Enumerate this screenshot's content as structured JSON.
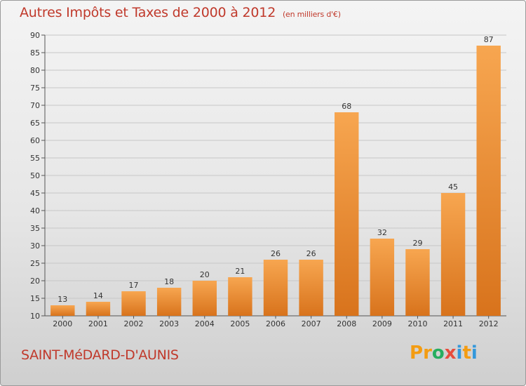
{
  "header": {
    "title": "Autres Impôts et Taxes de 2000 à 2012",
    "subtitle": "(en milliers d'€)"
  },
  "footer": {
    "city": "SAINT-MéDARD-D'AUNIS",
    "logo": {
      "text": "Proxiti",
      "letters": [
        {
          "char": "P",
          "color": "#f39c12"
        },
        {
          "char": "r",
          "color": "#f39c12"
        },
        {
          "char": "o",
          "color": "#27ae60"
        },
        {
          "char": "x",
          "color": "#e74c3c"
        },
        {
          "char": "i",
          "color": "#3498db"
        },
        {
          "char": "t",
          "color": "#f39c12"
        },
        {
          "char": "i",
          "color": "#3498db"
        }
      ]
    }
  },
  "colors": {
    "accent": "#c0392b",
    "bar_light": "#f7a650",
    "bar_dark": "#d8731c",
    "grid": "#c7c7c7"
  },
  "chart_data": {
    "type": "bar",
    "title": "Autres Impôts et Taxes de 2000 à 2012",
    "subtitle": "(en milliers d'€)",
    "categories": [
      "2000",
      "2001",
      "2002",
      "2003",
      "2004",
      "2005",
      "2006",
      "2007",
      "2008",
      "2009",
      "2010",
      "2011",
      "2012"
    ],
    "values": [
      13,
      14,
      17,
      18,
      20,
      21,
      26,
      26,
      68,
      32,
      29,
      45,
      87
    ],
    "ylim": [
      10,
      90
    ],
    "yticks": [
      10,
      15,
      20,
      25,
      30,
      35,
      40,
      45,
      50,
      55,
      60,
      65,
      70,
      75,
      80,
      85,
      90
    ],
    "grid": true,
    "data_labels": true
  }
}
